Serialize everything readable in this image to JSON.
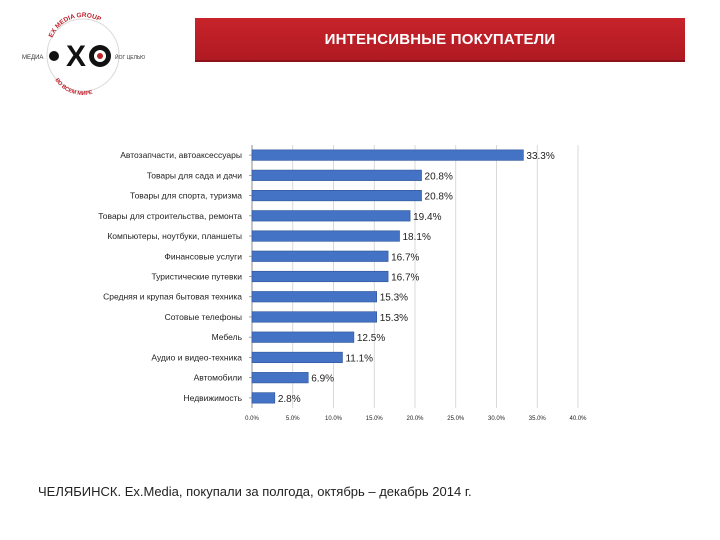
{
  "header": {
    "title": "ИНТЕНСИВНЫЕ ПОКУПАТЕЛИ"
  },
  "logo": {
    "arc_top": "EX MEDIA GROUP",
    "tag_left": "МЕДИА",
    "tag_right": "ЙОГ ЦЕЛЬЮ",
    "arc_bottom": "ВО ВСЕМ МИРЕ"
  },
  "footer": {
    "text": "ЧЕЛЯБИНСК. Ex.Media, покупали за полгода, октябрь – декабрь 2014 г."
  },
  "colors": {
    "bar": "#4472c4",
    "bar_edge": "#2f5597",
    "banner": "#c0202a",
    "axis": "#8c8c8c"
  },
  "chart_data": {
    "type": "bar",
    "orientation": "horizontal",
    "categories": [
      "Автозапчасти, автоаксессуары",
      "Товары для сада и дачи",
      "Товары для спорта, туризма",
      "Товары для строительства, ремонта",
      "Компьютеры, ноутбуки, планшеты",
      "Финансовые услуги",
      "Туристические путевки",
      "Средняя и крупая бытовая техника",
      "Сотовые телефоны",
      "Мебель",
      "Аудио и видео-техника",
      "Автомобили",
      "Недвижимость"
    ],
    "values": [
      33.3,
      20.8,
      20.8,
      19.4,
      18.1,
      16.7,
      16.7,
      15.3,
      15.3,
      12.5,
      11.1,
      6.9,
      2.8
    ],
    "value_labels": [
      "33.3%",
      "20.8%",
      "20.8%",
      "19.4%",
      "18.1%",
      "16.7%",
      "16.7%",
      "15.3%",
      "15.3%",
      "12.5%",
      "11.1%",
      "6.9%",
      "2.8%"
    ],
    "x_ticks": [
      "0.0%",
      "5.0%",
      "10.0%",
      "15.0%",
      "20.0%",
      "25.0%",
      "30.0%",
      "35.0%",
      "40.0%"
    ],
    "xlim": [
      0,
      40
    ],
    "grid": true,
    "legend": false,
    "title": "",
    "xlabel": "",
    "ylabel": ""
  }
}
